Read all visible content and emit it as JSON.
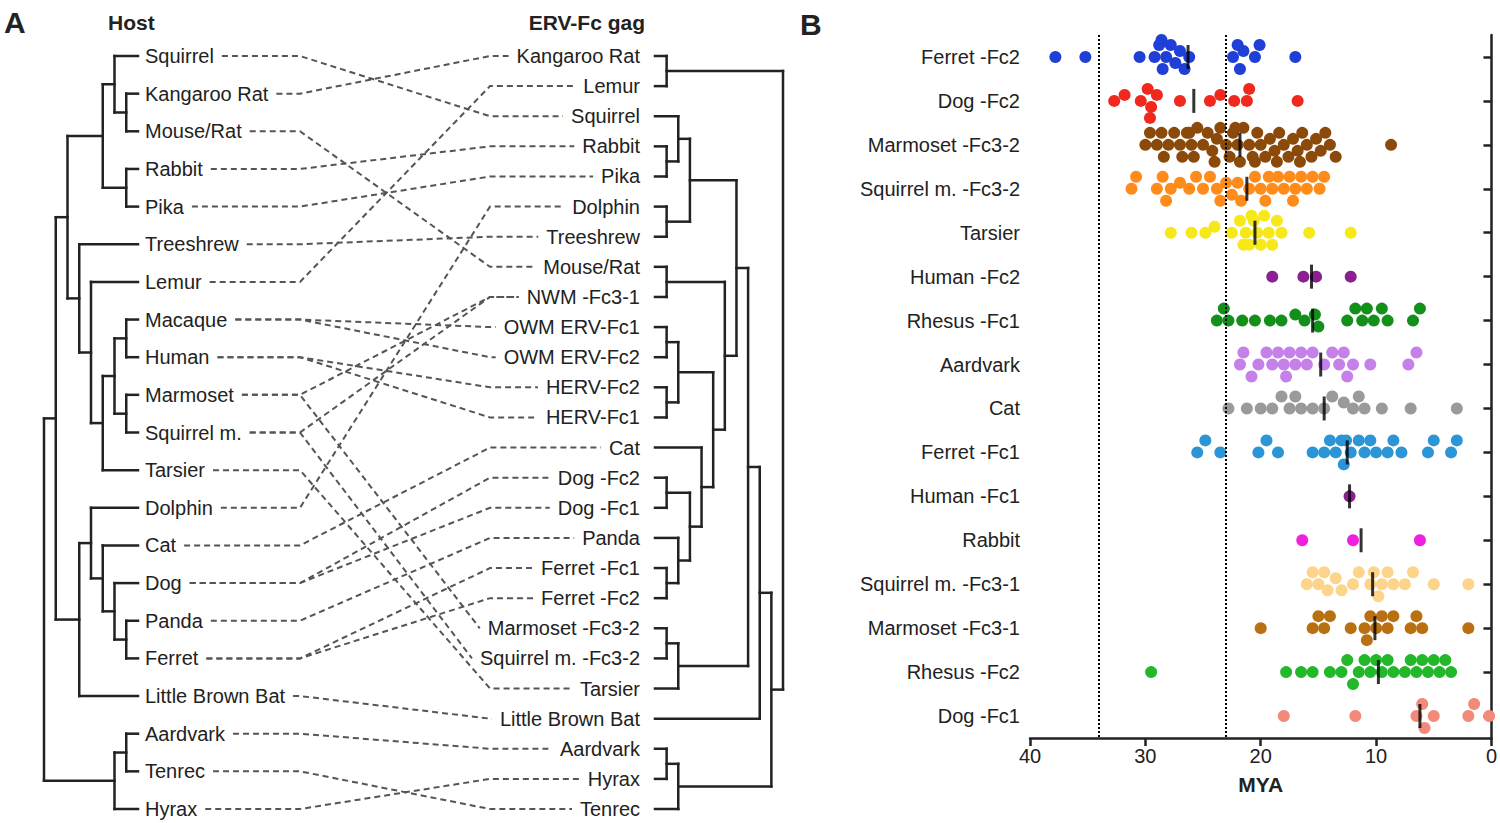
{
  "diagram": {
    "panel_label": "A",
    "host": {
      "title": "Host",
      "leaves": [
        "Squirrel",
        "Kangaroo Rat",
        "Mouse/Rat",
        "Rabbit",
        "Pika",
        "Treeshrew",
        "Lemur",
        "Macaque",
        "Human",
        "Marmoset",
        "Squirrel m.",
        "Tarsier",
        "Dolphin",
        "Cat",
        "Dog",
        "Panda",
        "Ferret",
        "Little Brown Bat",
        "Aardvark",
        "Tenrec",
        "Hyrax"
      ],
      "tree": [
        [
          [
            [
              [
                0,
                [
                  1,
                  2
                ]
              ],
              [
                3,
                4
              ]
            ],
            [
              5,
              [
                6,
                [
                  [
                    [
                      7,
                      8
                    ],
                    [
                      9,
                      10
                    ]
                  ],
                  11
                ]
              ]
            ]
          ],
          [
            [
              12,
              [
                13,
                [
                  14,
                  [
                    15,
                    16
                  ]
                ]
              ]
            ],
            17
          ]
        ],
        [
          [
            18,
            19
          ],
          20
        ]
      ]
    },
    "erv": {
      "title": "ERV-Fc gag",
      "leaves": [
        "Kangaroo Rat",
        "Lemur",
        "Squirrel",
        "Rabbit",
        "Pika",
        "Dolphin",
        "Treeshrew",
        "Mouse/Rat",
        "NWM -Fc3-1",
        "OWM ERV-Fc1",
        "OWM ERV-Fc2",
        "HERV-Fc2",
        "HERV-Fc1",
        "Cat",
        "Dog -Fc2",
        "Dog -Fc1",
        "Panda",
        "Ferret -Fc1",
        "Ferret -Fc2",
        "Marmoset -Fc3-2",
        "Squirrel m. -Fc3-2",
        "Tarsier",
        "Little Brown Bat",
        "Aardvark",
        "Hyrax",
        "Tenrec"
      ],
      "tree": [
        [
          0,
          1
        ],
        [
          [
            [
              [
                [
                  [
                    2,
                    [
                      3,
                      4
                    ]
                  ],
                  [
                    5,
                    6
                  ]
                ],
                [
                  [
                    7,
                    8
                  ],
                  [
                    [
                      [
                        9,
                        10
                      ],
                      [
                        11,
                        12
                      ]
                    ],
                    [
                      13,
                      [
                        [
                          14,
                          15
                        ],
                        [
                          16,
                          [
                            17,
                            18
                          ]
                        ]
                      ]
                    ]
                  ]
                ]
              ],
              [
                [
                  19,
                  20
                ],
                21
              ]
            ],
            22
          ],
          [
            [
              23,
              24
            ],
            25
          ]
        ]
      ]
    },
    "links": [
      [
        0,
        2
      ],
      [
        1,
        0
      ],
      [
        2,
        7
      ],
      [
        3,
        3
      ],
      [
        4,
        4
      ],
      [
        5,
        6
      ],
      [
        6,
        1
      ],
      [
        7,
        9
      ],
      [
        7,
        10
      ],
      [
        8,
        11
      ],
      [
        8,
        12
      ],
      [
        9,
        8
      ],
      [
        9,
        19
      ],
      [
        10,
        8
      ],
      [
        10,
        20
      ],
      [
        11,
        21
      ],
      [
        12,
        5
      ],
      [
        13,
        13
      ],
      [
        14,
        14
      ],
      [
        14,
        15
      ],
      [
        15,
        16
      ],
      [
        16,
        17
      ],
      [
        16,
        18
      ],
      [
        17,
        22
      ],
      [
        18,
        23
      ],
      [
        19,
        25
      ],
      [
        20,
        24
      ]
    ]
  },
  "chart_data": {
    "panel_label": "B",
    "type": "scatter",
    "orientation": "horizontal",
    "grid": false,
    "xlabel": "MYA",
    "xlim": [
      40,
      0
    ],
    "xticks": [
      40,
      30,
      20,
      10,
      0
    ],
    "reference_lines": [
      34,
      23
    ],
    "line_style": "dotted",
    "categories": [
      "Ferret -Fc2",
      "Dog -Fc2",
      "Marmoset -Fc3-2",
      "Squirrel m. -Fc3-2",
      "Tarsier",
      "Human -Fc2",
      "Rhesus -Fc1",
      "Aardvark",
      "Cat",
      "Ferret -Fc1",
      "Human -Fc1",
      "Rabbit",
      "Squirrel m. -Fc3-1",
      "Marmoset -Fc3-1",
      "Rhesus -Fc2",
      "Dog -Fc1"
    ],
    "colors": [
      "#1f3fd6",
      "#f0281e",
      "#8b4a0a",
      "#ff8c1a",
      "#f7e81a",
      "#8b2090",
      "#13901a",
      "#c580ea",
      "#9a9a9a",
      "#2b95d6",
      "#8b2090",
      "#f020e0",
      "#fdd48a",
      "#b87010",
      "#22b82a",
      "#f28a7a"
    ],
    "medians": [
      26.3,
      25.8,
      21.8,
      21.2,
      20.5,
      15.6,
      15.5,
      14.8,
      14.5,
      12.5,
      12.3,
      11.3,
      10.3,
      10.1,
      9.8,
      6.2
    ],
    "values": [
      [
        37.8,
        35.2,
        30.5,
        29.2,
        28.8,
        28.5,
        28.2,
        27.8,
        27.4,
        27.0,
        26.6,
        26.2,
        22.4,
        22.0,
        21.8,
        21.5,
        20.5,
        20.1,
        17.0,
        28.6
      ],
      [
        32.7,
        31.8,
        30.4,
        29.8,
        29.5,
        29.0,
        27.0,
        24.4,
        23.5,
        22.3,
        21.2,
        21.0,
        16.8,
        29.6
      ],
      [
        30.0,
        29.6,
        29.0,
        28.6,
        28.0,
        27.5,
        27.0,
        26.8,
        26.4,
        26.0,
        25.8,
        25.5,
        25.0,
        24.6,
        24.2,
        23.8,
        23.5,
        23.0,
        22.7,
        22.4,
        22.0,
        21.8,
        21.5,
        21.0,
        20.7,
        20.3,
        20.0,
        19.6,
        19.2,
        18.8,
        18.4,
        18.0,
        17.6,
        17.2,
        16.8,
        16.4,
        16.0,
        15.6,
        15.2,
        14.8,
        14.4,
        14.0,
        13.5,
        8.7,
        28.4,
        26.2,
        24.0,
        22.2,
        20.5,
        18.6,
        16.6
      ],
      [
        31.2,
        30.8,
        29.0,
        28.5,
        27.8,
        27.0,
        26.2,
        25.6,
        25.0,
        24.4,
        23.8,
        23.0,
        22.5,
        22.0,
        21.7,
        21.0,
        20.5,
        20.0,
        19.6,
        19.0,
        18.5,
        18.0,
        17.5,
        17.0,
        16.5,
        16.0,
        15.5,
        14.9,
        14.5,
        28.2,
        23.5,
        19.3,
        17.2
      ],
      [
        27.8,
        26.0,
        24.8,
        24.0,
        22.5,
        21.8,
        21.3,
        21.0,
        20.6,
        20.3,
        20.0,
        19.7,
        19.3,
        19.0,
        18.6,
        18.2,
        15.8,
        12.2,
        21.5,
        20.8
      ],
      [
        19.0,
        16.3,
        15.2,
        12.2
      ],
      [
        23.8,
        23.2,
        22.8,
        21.6,
        20.5,
        19.2,
        18.2,
        16.2,
        15.3,
        15.0,
        12.5,
        11.2,
        10.8,
        10.2,
        9.5,
        9.0,
        6.8,
        6.2,
        11.8,
        17.0
      ],
      [
        21.8,
        21.5,
        20.2,
        19.5,
        19.0,
        18.5,
        18.0,
        17.5,
        17.0,
        16.5,
        16.0,
        15.5,
        14.5,
        13.8,
        13.2,
        12.8,
        12.5,
        12.0,
        10.5,
        7.2,
        6.5,
        20.8,
        17.8
      ],
      [
        22.8,
        21.2,
        20.0,
        19.0,
        17.5,
        17.0,
        16.5,
        15.5,
        14.5,
        13.8,
        12.0,
        11.5,
        11.0,
        9.5,
        7.0,
        3.0,
        18.2,
        12.8
      ],
      [
        25.5,
        24.8,
        23.5,
        20.2,
        19.5,
        18.5,
        15.5,
        14.5,
        14.0,
        13.5,
        13.0,
        12.8,
        12.2,
        11.5,
        11.0,
        10.5,
        10.0,
        9.0,
        8.5,
        7.8,
        5.5,
        5.0,
        3.5,
        3.0,
        12.6
      ],
      [
        12.3
      ],
      [
        16.4,
        12.0,
        6.2
      ],
      [
        16.0,
        15.5,
        15.0,
        14.5,
        14.2,
        13.5,
        12.0,
        10.5,
        10.2,
        9.8,
        9.5,
        9.0,
        8.5,
        7.5,
        6.8,
        5.0,
        2.0,
        13.0,
        11.5
      ],
      [
        20.0,
        15.5,
        15.0,
        14.5,
        14.0,
        12.2,
        11.0,
        10.5,
        10.0,
        9.5,
        9.0,
        8.5,
        7.0,
        6.5,
        6.0,
        2.0,
        10.8
      ],
      [
        29.5,
        17.8,
        16.5,
        15.5,
        14.0,
        13.0,
        12.5,
        11.5,
        11.0,
        10.5,
        10.0,
        9.5,
        8.5,
        7.5,
        7.0,
        6.5,
        6.0,
        5.5,
        5.0,
        4.5,
        4.0,
        3.5,
        12.0,
        9.0
      ],
      [
        18.0,
        11.8,
        6.5,
        6.0,
        5.8,
        5.0,
        2.0,
        1.5,
        0.2
      ]
    ]
  }
}
